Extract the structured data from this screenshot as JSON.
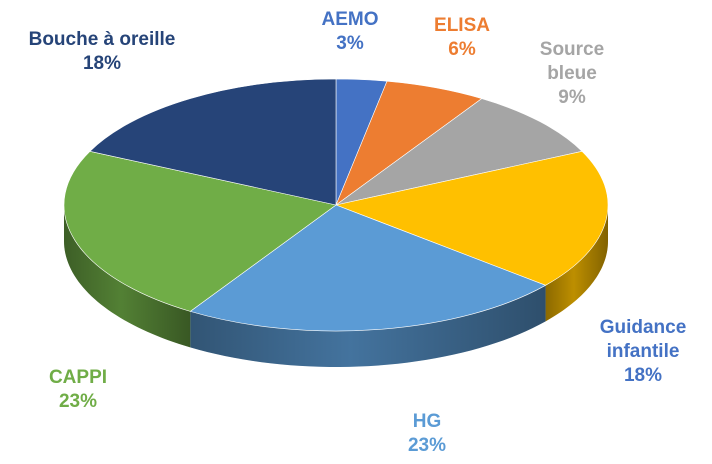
{
  "chart_data": {
    "type": "pie",
    "title": "",
    "legend": "none",
    "slices": [
      {
        "name": "AEMO",
        "value": 3,
        "label": "3%",
        "color": "#4472C4",
        "label_color": "#4472C4"
      },
      {
        "name": "ELISA",
        "value": 6,
        "label": "6%",
        "color": "#ED7D31",
        "label_color": "#ED7D31"
      },
      {
        "name": "Source bleue",
        "value": 9,
        "label": "9%",
        "color": "#A5A5A5",
        "label_color": "#A5A5A5"
      },
      {
        "name": "Guidance infantile",
        "value": 18,
        "label": "18%",
        "color": "#FFC000",
        "label_color": "#4472C4"
      },
      {
        "name": "HG",
        "value": 23,
        "label": "23%",
        "color": "#5B9BD5",
        "label_color": "#5B9BD5"
      },
      {
        "name": "CAPPI",
        "value": 23,
        "label": "23%",
        "color": "#70AD47",
        "label_color": "#70AD47"
      },
      {
        "name": "Bouche à oreille",
        "value": 18,
        "label": "18%",
        "color": "#264478",
        "label_color": "#264478"
      }
    ]
  }
}
